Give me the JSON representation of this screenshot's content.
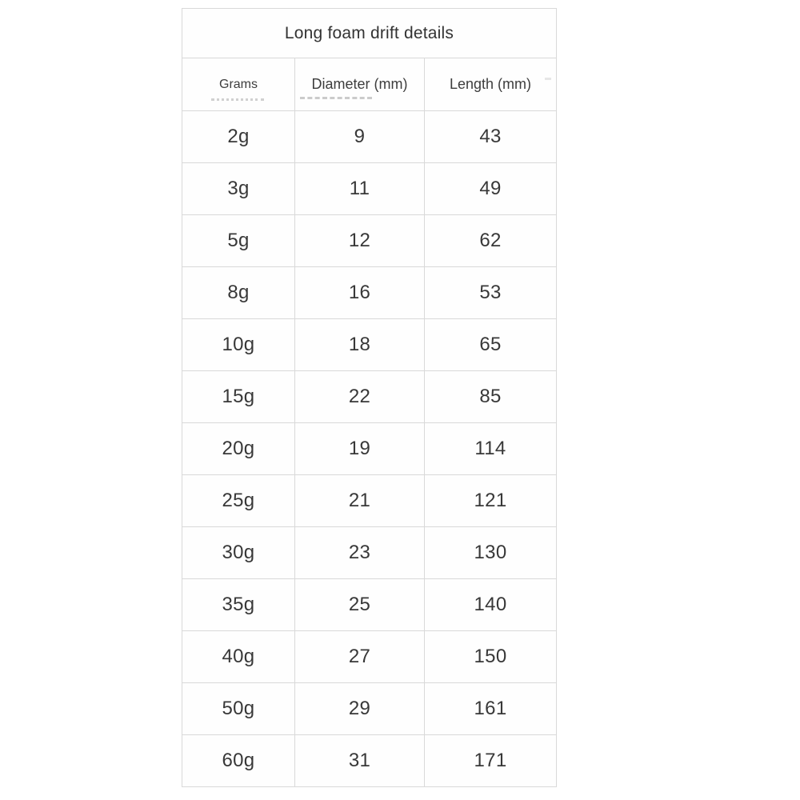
{
  "table": {
    "title": "Long foam drift details",
    "columns": [
      "Grams",
      "Diameter (mm)",
      "Length (mm)"
    ],
    "rows": [
      {
        "grams": "2g",
        "diameter": "9",
        "length": "43"
      },
      {
        "grams": "3g",
        "diameter": "11",
        "length": "49"
      },
      {
        "grams": "5g",
        "diameter": "12",
        "length": "62"
      },
      {
        "grams": "8g",
        "diameter": "16",
        "length": "53"
      },
      {
        "grams": "10g",
        "diameter": "18",
        "length": "65"
      },
      {
        "grams": "15g",
        "diameter": "22",
        "length": "85"
      },
      {
        "grams": "20g",
        "diameter": "19",
        "length": "114"
      },
      {
        "grams": "25g",
        "diameter": "21",
        "length": "121"
      },
      {
        "grams": "30g",
        "diameter": "23",
        "length": "130"
      },
      {
        "grams": "35g",
        "diameter": "25",
        "length": "140"
      },
      {
        "grams": "40g",
        "diameter": "27",
        "length": "150"
      },
      {
        "grams": "50g",
        "diameter": "29",
        "length": "161"
      },
      {
        "grams": "60g",
        "diameter": "31",
        "length": "171"
      }
    ]
  },
  "chart_data": {
    "type": "table",
    "title": "Long foam drift details",
    "columns": [
      "Grams",
      "Diameter (mm)",
      "Length (mm)"
    ],
    "rows": [
      [
        "2g",
        9,
        43
      ],
      [
        "3g",
        11,
        49
      ],
      [
        "5g",
        12,
        62
      ],
      [
        "8g",
        16,
        53
      ],
      [
        "10g",
        18,
        65
      ],
      [
        "15g",
        22,
        85
      ],
      [
        "20g",
        19,
        114
      ],
      [
        "25g",
        21,
        121
      ],
      [
        "30g",
        23,
        130
      ],
      [
        "35g",
        25,
        140
      ],
      [
        "40g",
        27,
        150
      ],
      [
        "50g",
        29,
        161
      ],
      [
        "60g",
        31,
        171
      ]
    ]
  },
  "colors": {
    "border": "#d9d9d9",
    "text": "#383838",
    "background": "#ffffff"
  }
}
